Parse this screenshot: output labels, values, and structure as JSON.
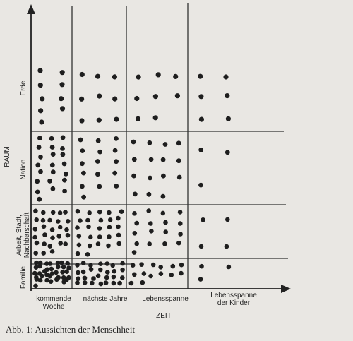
{
  "diagram": {
    "y_axis_label": "RAUM",
    "x_axis_label": "ZEIT",
    "y_categories": [
      "Erde",
      "Nation",
      "Arbeit, Stadt, Nachbarschaft",
      "Familie"
    ],
    "x_categories": [
      [
        "kommende",
        "Woche"
      ],
      [
        "nächste Jahre"
      ],
      [
        "Lebensspanne"
      ],
      [
        "Lebensspanne",
        "der Kinder"
      ]
    ],
    "caption": "Abb. 1: Aussichten der Menschheit"
  }
}
